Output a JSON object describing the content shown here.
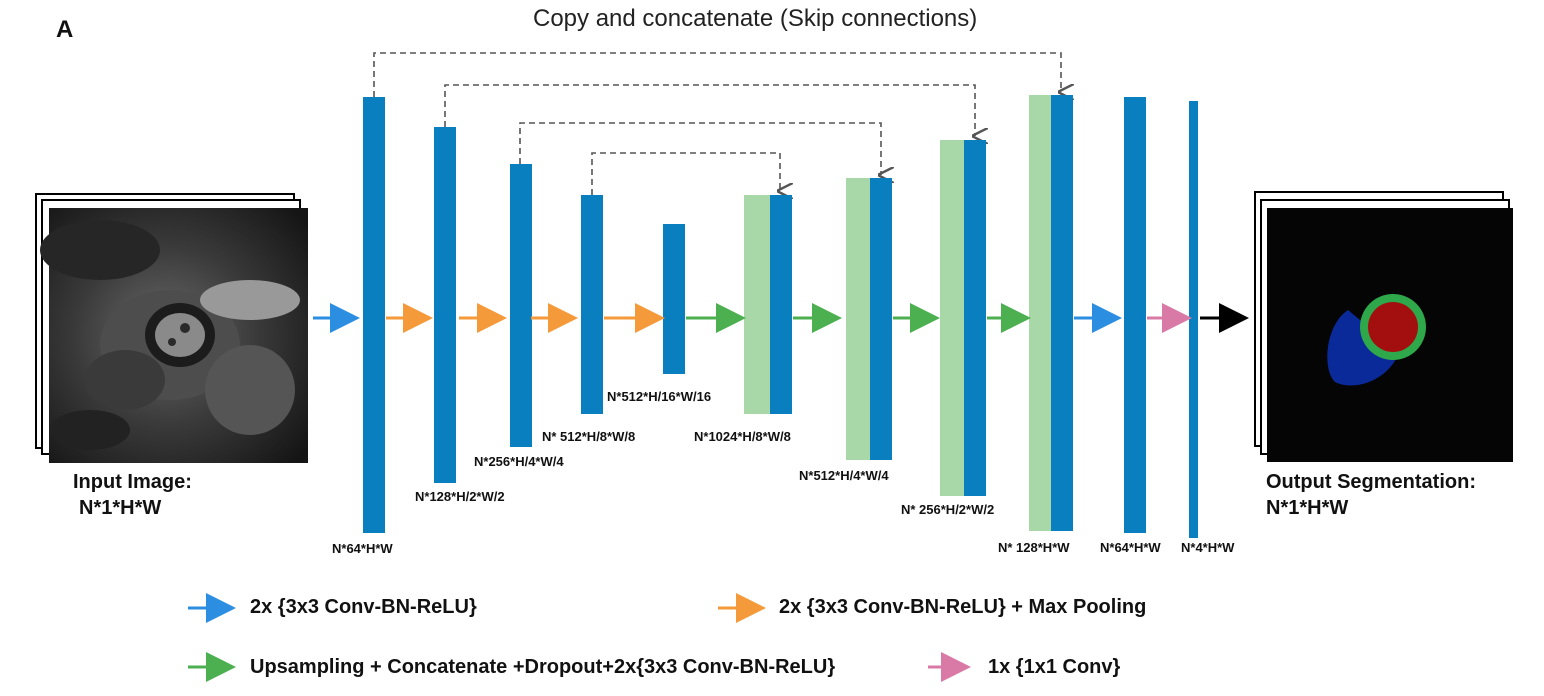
{
  "panel_letter": "A",
  "title": "Copy and concatenate (Skip connections)",
  "input": {
    "label": "Input Image:",
    "dims": "N*1*H*W",
    "image_icon": "cardiac-mri-slice"
  },
  "output": {
    "label": "Output Segmentation:",
    "dims": "N*1*H*W",
    "image_icon": "segmentation-mask"
  },
  "feature_maps": [
    "N*64*H*W",
    "N*128*H/2*W/2",
    "N*256*H/4*W/4",
    "N* 512*H/8*W/8",
    "N*512*H/16*W/16",
    "N*1024*H/8*W/8",
    "N*512*H/4*W/4",
    "N* 256*H/2*W/2",
    "N* 128*H*W",
    "N*64*H*W",
    "N*4*H*W"
  ],
  "legend": {
    "conv": "2x {3x3 Conv-BN-ReLU}",
    "conv_pool": "2x {3x3 Conv-BN-ReLU} + Max Pooling",
    "upsample": "Upsampling + Concatenate +Dropout+2x{3x3 Conv-BN-ReLU}",
    "conv1x1": "1x {1x1 Conv}"
  },
  "colors": {
    "block_blue": "#0a7fc0",
    "block_green": "#a8d8a8",
    "arrow_blue": "#2b8ee0",
    "arrow_orange": "#f59a3a",
    "arrow_green": "#4caf50",
    "arrow_pink": "#d97aa6",
    "arrow_black": "#000000",
    "skip_dash": "#555555",
    "seg_blue": "#0a2a9a",
    "seg_red": "#a30f0f",
    "seg_green": "#2ea84a"
  }
}
